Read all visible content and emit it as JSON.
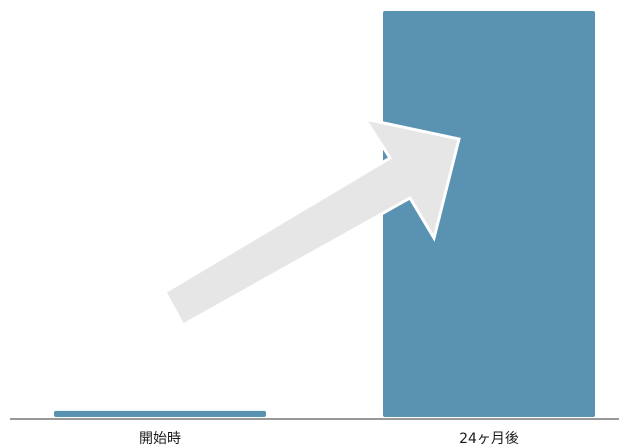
{
  "chart_data": {
    "type": "bar",
    "title": "",
    "xlabel": "",
    "ylabel": "",
    "categories": [
      "開始時",
      "24ヶ月後"
    ],
    "values": [
      1.5,
      100
    ],
    "ylim": [
      0,
      100
    ],
    "grid": false,
    "legend": "none",
    "annotations": [
      {
        "type": "arrow",
        "direction": "up-right",
        "color": "#e6e6e6"
      }
    ]
  },
  "colors": {
    "bar": "#5a93b2",
    "axis": "#333333",
    "arrow": "#e6e6e6",
    "label": "#1a1a1a"
  }
}
